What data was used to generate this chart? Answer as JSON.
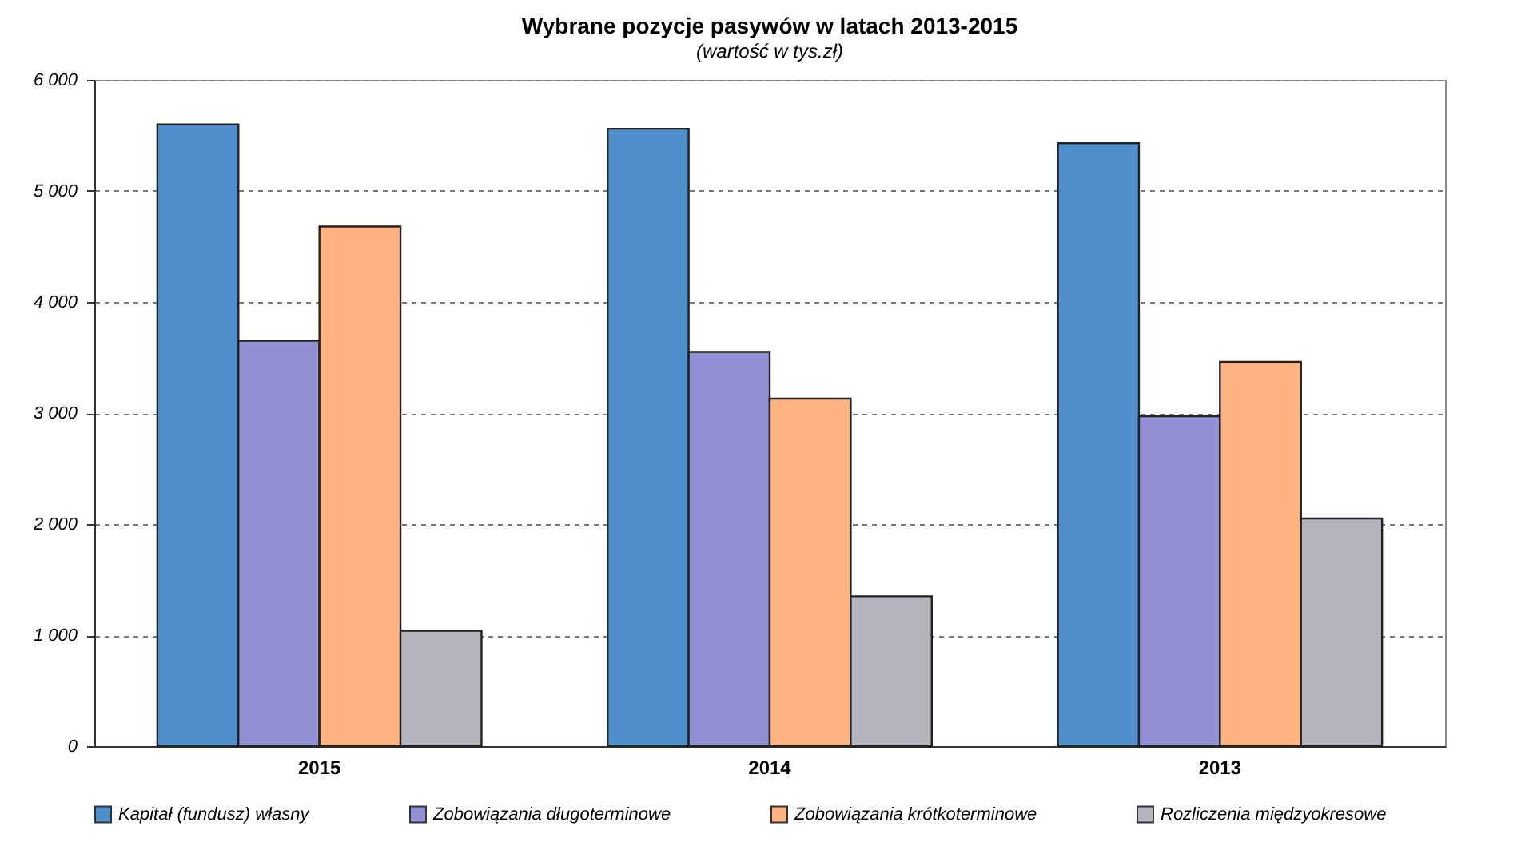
{
  "chart_data": {
    "type": "bar",
    "title": "Wybrane pozycje pasywów w latach 2013-2015",
    "subtitle": "(wartość w tys.zł)",
    "categories": [
      "2015",
      "2014",
      "2013"
    ],
    "series": [
      {
        "name": "Kapitał (fundusz) własny",
        "color": "#4f8fcc",
        "values": [
          5600,
          5560,
          5430
        ]
      },
      {
        "name": "Zobowiązania długoterminowe",
        "color": "#9090d2",
        "values": [
          3650,
          3550,
          2970
        ]
      },
      {
        "name": "Zobowiązania krótkoterminowe",
        "color": "#ffb380",
        "values": [
          4680,
          3130,
          3460
        ]
      },
      {
        "name": "Rozliczenia międzyokresowe",
        "color": "#b4b4bc",
        "values": [
          1040,
          1350,
          2050
        ]
      }
    ],
    "ylim": [
      0,
      6000
    ],
    "yticks": [
      0,
      {
        "value": 1000,
        "label": "1 000"
      },
      {
        "value": 2000,
        "label": "2 000"
      },
      {
        "value": 3000,
        "label": "3 000"
      },
      {
        "value": 4000,
        "label": "4 000"
      },
      {
        "value": 5000,
        "label": "5 000"
      },
      {
        "value": 6000,
        "label": "6 000"
      }
    ],
    "grid": "y",
    "legend": "bottom"
  }
}
